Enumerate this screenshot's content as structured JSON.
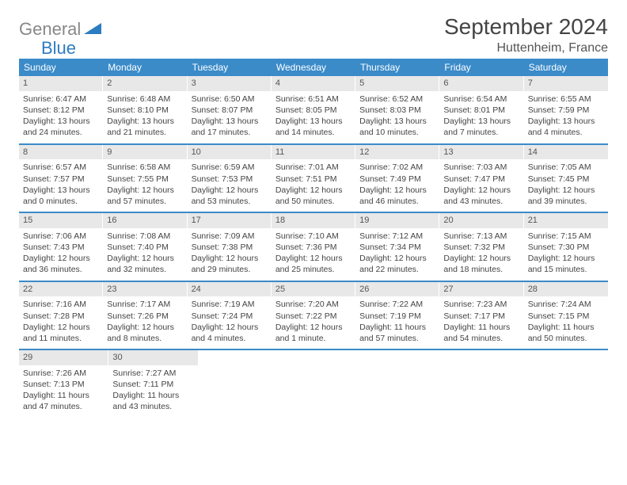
{
  "logo": {
    "gray": "General",
    "blue": "Blue"
  },
  "title": "September 2024",
  "location": "Huttenheim, France",
  "colors": {
    "header_bg": "#3b8bc9",
    "header_text": "#ffffff",
    "daynum_bg": "#e8e8e8",
    "border": "#3b8bc9",
    "logo_gray": "#888888",
    "logo_blue": "#2d7cc1",
    "text": "#444444"
  },
  "dayNames": [
    "Sunday",
    "Monday",
    "Tuesday",
    "Wednesday",
    "Thursday",
    "Friday",
    "Saturday"
  ],
  "weeks": [
    [
      {
        "n": "1",
        "sunrise": "6:47 AM",
        "sunset": "8:12 PM",
        "dl_h": "13",
        "dl_m": "24"
      },
      {
        "n": "2",
        "sunrise": "6:48 AM",
        "sunset": "8:10 PM",
        "dl_h": "13",
        "dl_m": "21"
      },
      {
        "n": "3",
        "sunrise": "6:50 AM",
        "sunset": "8:07 PM",
        "dl_h": "13",
        "dl_m": "17"
      },
      {
        "n": "4",
        "sunrise": "6:51 AM",
        "sunset": "8:05 PM",
        "dl_h": "13",
        "dl_m": "14"
      },
      {
        "n": "5",
        "sunrise": "6:52 AM",
        "sunset": "8:03 PM",
        "dl_h": "13",
        "dl_m": "10"
      },
      {
        "n": "6",
        "sunrise": "6:54 AM",
        "sunset": "8:01 PM",
        "dl_h": "13",
        "dl_m": "7"
      },
      {
        "n": "7",
        "sunrise": "6:55 AM",
        "sunset": "7:59 PM",
        "dl_h": "13",
        "dl_m": "4"
      }
    ],
    [
      {
        "n": "8",
        "sunrise": "6:57 AM",
        "sunset": "7:57 PM",
        "dl_h": "13",
        "dl_m": "0"
      },
      {
        "n": "9",
        "sunrise": "6:58 AM",
        "sunset": "7:55 PM",
        "dl_h": "12",
        "dl_m": "57"
      },
      {
        "n": "10",
        "sunrise": "6:59 AM",
        "sunset": "7:53 PM",
        "dl_h": "12",
        "dl_m": "53"
      },
      {
        "n": "11",
        "sunrise": "7:01 AM",
        "sunset": "7:51 PM",
        "dl_h": "12",
        "dl_m": "50"
      },
      {
        "n": "12",
        "sunrise": "7:02 AM",
        "sunset": "7:49 PM",
        "dl_h": "12",
        "dl_m": "46"
      },
      {
        "n": "13",
        "sunrise": "7:03 AM",
        "sunset": "7:47 PM",
        "dl_h": "12",
        "dl_m": "43"
      },
      {
        "n": "14",
        "sunrise": "7:05 AM",
        "sunset": "7:45 PM",
        "dl_h": "12",
        "dl_m": "39"
      }
    ],
    [
      {
        "n": "15",
        "sunrise": "7:06 AM",
        "sunset": "7:43 PM",
        "dl_h": "12",
        "dl_m": "36"
      },
      {
        "n": "16",
        "sunrise": "7:08 AM",
        "sunset": "7:40 PM",
        "dl_h": "12",
        "dl_m": "32"
      },
      {
        "n": "17",
        "sunrise": "7:09 AM",
        "sunset": "7:38 PM",
        "dl_h": "12",
        "dl_m": "29"
      },
      {
        "n": "18",
        "sunrise": "7:10 AM",
        "sunset": "7:36 PM",
        "dl_h": "12",
        "dl_m": "25"
      },
      {
        "n": "19",
        "sunrise": "7:12 AM",
        "sunset": "7:34 PM",
        "dl_h": "12",
        "dl_m": "22"
      },
      {
        "n": "20",
        "sunrise": "7:13 AM",
        "sunset": "7:32 PM",
        "dl_h": "12",
        "dl_m": "18"
      },
      {
        "n": "21",
        "sunrise": "7:15 AM",
        "sunset": "7:30 PM",
        "dl_h": "12",
        "dl_m": "15"
      }
    ],
    [
      {
        "n": "22",
        "sunrise": "7:16 AM",
        "sunset": "7:28 PM",
        "dl_h": "12",
        "dl_m": "11"
      },
      {
        "n": "23",
        "sunrise": "7:17 AM",
        "sunset": "7:26 PM",
        "dl_h": "12",
        "dl_m": "8"
      },
      {
        "n": "24",
        "sunrise": "7:19 AM",
        "sunset": "7:24 PM",
        "dl_h": "12",
        "dl_m": "4"
      },
      {
        "n": "25",
        "sunrise": "7:20 AM",
        "sunset": "7:22 PM",
        "dl_h": "12",
        "dl_m": "1"
      },
      {
        "n": "26",
        "sunrise": "7:22 AM",
        "sunset": "7:19 PM",
        "dl_h": "11",
        "dl_m": "57"
      },
      {
        "n": "27",
        "sunrise": "7:23 AM",
        "sunset": "7:17 PM",
        "dl_h": "11",
        "dl_m": "54"
      },
      {
        "n": "28",
        "sunrise": "7:24 AM",
        "sunset": "7:15 PM",
        "dl_h": "11",
        "dl_m": "50"
      }
    ],
    [
      {
        "n": "29",
        "sunrise": "7:26 AM",
        "sunset": "7:13 PM",
        "dl_h": "11",
        "dl_m": "47"
      },
      {
        "n": "30",
        "sunrise": "7:27 AM",
        "sunset": "7:11 PM",
        "dl_h": "11",
        "dl_m": "43"
      },
      null,
      null,
      null,
      null,
      null
    ]
  ],
  "labels": {
    "sunrise": "Sunrise:",
    "sunset": "Sunset:",
    "daylight": "Daylight:",
    "hours": "hours",
    "and": "and",
    "minutes_word": "minutes.",
    "minute_word": "minute."
  }
}
